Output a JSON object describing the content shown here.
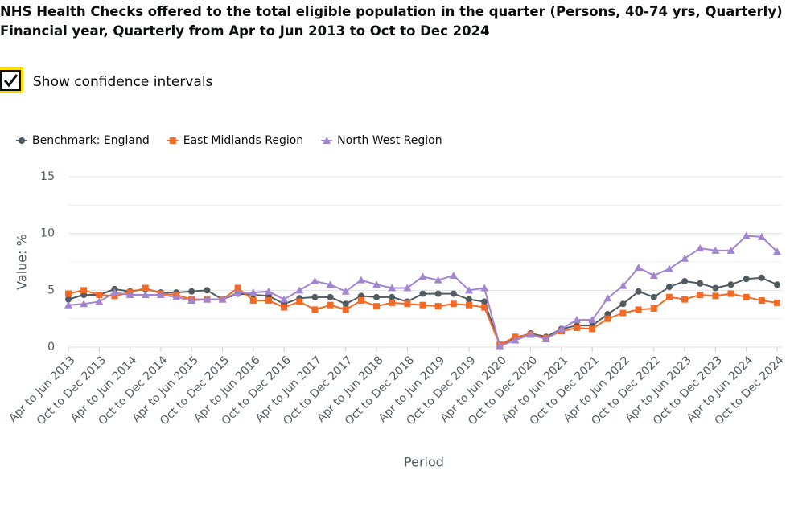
{
  "title": "NHS Health Checks offered to the total eligible population in the quarter (Persons, 40-74 yrs, Quarterly) Financial year, Quarterly from Apr to Jun 2013 to Oct to Dec 2024",
  "checkbox": {
    "label": "Show confidence intervals",
    "checked": true
  },
  "chart_data": {
    "type": "line",
    "xlabel": "Period",
    "ylabel": "Value: %",
    "categories": [
      "Apr to Jun 2013",
      null,
      "Oct to Dec 2013",
      null,
      "Apr to Jun 2014",
      null,
      "Oct to Dec 2014",
      null,
      "Apr to Jun 2015",
      null,
      "Oct to Dec 2015",
      null,
      "Apr to Jun 2016",
      null,
      "Oct to Dec 2016",
      null,
      "Apr to Jun 2017",
      null,
      "Oct to Dec 2017",
      null,
      "Apr to Jun 2018",
      null,
      "Oct to Dec 2018",
      null,
      "Apr to Jun 2019",
      null,
      "Oct to Dec 2019",
      null,
      "Apr to Jun 2020",
      null,
      "Oct to Dec 2020",
      null,
      "Apr to Jun 2021",
      null,
      "Oct to Dec 2021",
      null,
      "Apr to Jun 2022",
      null,
      "Oct to Dec 2022",
      null,
      "Apr to Jun 2023",
      null,
      "Oct to Dec 2023",
      null,
      "Apr to Jun 2024",
      null,
      "Oct to Dec 2024"
    ],
    "series": [
      {
        "name": "Benchmark: England",
        "color": "#505a5f",
        "marker": "circle",
        "values": [
          4.2,
          4.6,
          4.6,
          5.1,
          4.9,
          5.1,
          4.8,
          4.8,
          4.9,
          5.0,
          4.2,
          4.7,
          4.6,
          4.5,
          3.8,
          4.3,
          4.4,
          4.4,
          3.8,
          4.5,
          4.4,
          4.4,
          4.0,
          4.7,
          4.7,
          4.7,
          4.2,
          4.0,
          0.2,
          0.8,
          1.2,
          0.9,
          1.6,
          1.9,
          1.9,
          2.9,
          3.8,
          4.9,
          4.4,
          5.3,
          5.8,
          5.6,
          5.2,
          5.5,
          6.0,
          6.1,
          5.5
        ]
      },
      {
        "name": "East Midlands Region",
        "color": "#f46a25",
        "marker": "square",
        "values": [
          4.7,
          5.0,
          4.6,
          4.5,
          4.8,
          5.2,
          4.7,
          4.6,
          4.2,
          4.2,
          4.2,
          5.2,
          4.1,
          4.1,
          3.5,
          4.0,
          3.3,
          3.7,
          3.3,
          4.1,
          3.6,
          3.9,
          3.8,
          3.7,
          3.6,
          3.8,
          3.7,
          3.5,
          0.2,
          0.9,
          1.1,
          0.8,
          1.4,
          1.7,
          1.6,
          2.5,
          3.0,
          3.3,
          3.4,
          4.4,
          4.2,
          4.6,
          4.5,
          4.7,
          4.4,
          4.1,
          3.9
        ]
      },
      {
        "name": "North West Region",
        "color": "#a285d1",
        "marker": "triangle",
        "values": [
          3.7,
          3.8,
          4.0,
          4.8,
          4.6,
          4.6,
          4.6,
          4.4,
          4.1,
          4.2,
          4.2,
          4.8,
          4.8,
          4.9,
          4.2,
          5.0,
          5.8,
          5.5,
          4.9,
          5.9,
          5.5,
          5.2,
          5.2,
          6.2,
          5.9,
          6.3,
          5.0,
          5.2,
          0.1,
          0.6,
          1.1,
          0.7,
          1.6,
          2.4,
          2.4,
          4.3,
          5.4,
          7.0,
          6.3,
          6.9,
          7.8,
          8.7,
          8.5,
          8.5,
          9.8,
          9.7,
          8.4
        ]
      }
    ],
    "ylim": [
      0,
      15
    ],
    "yticks": [
      0,
      5,
      10,
      15
    ],
    "minor_grid": [
      2.5,
      7.5,
      12.5
    ],
    "grid": true,
    "legend": "top-left"
  }
}
